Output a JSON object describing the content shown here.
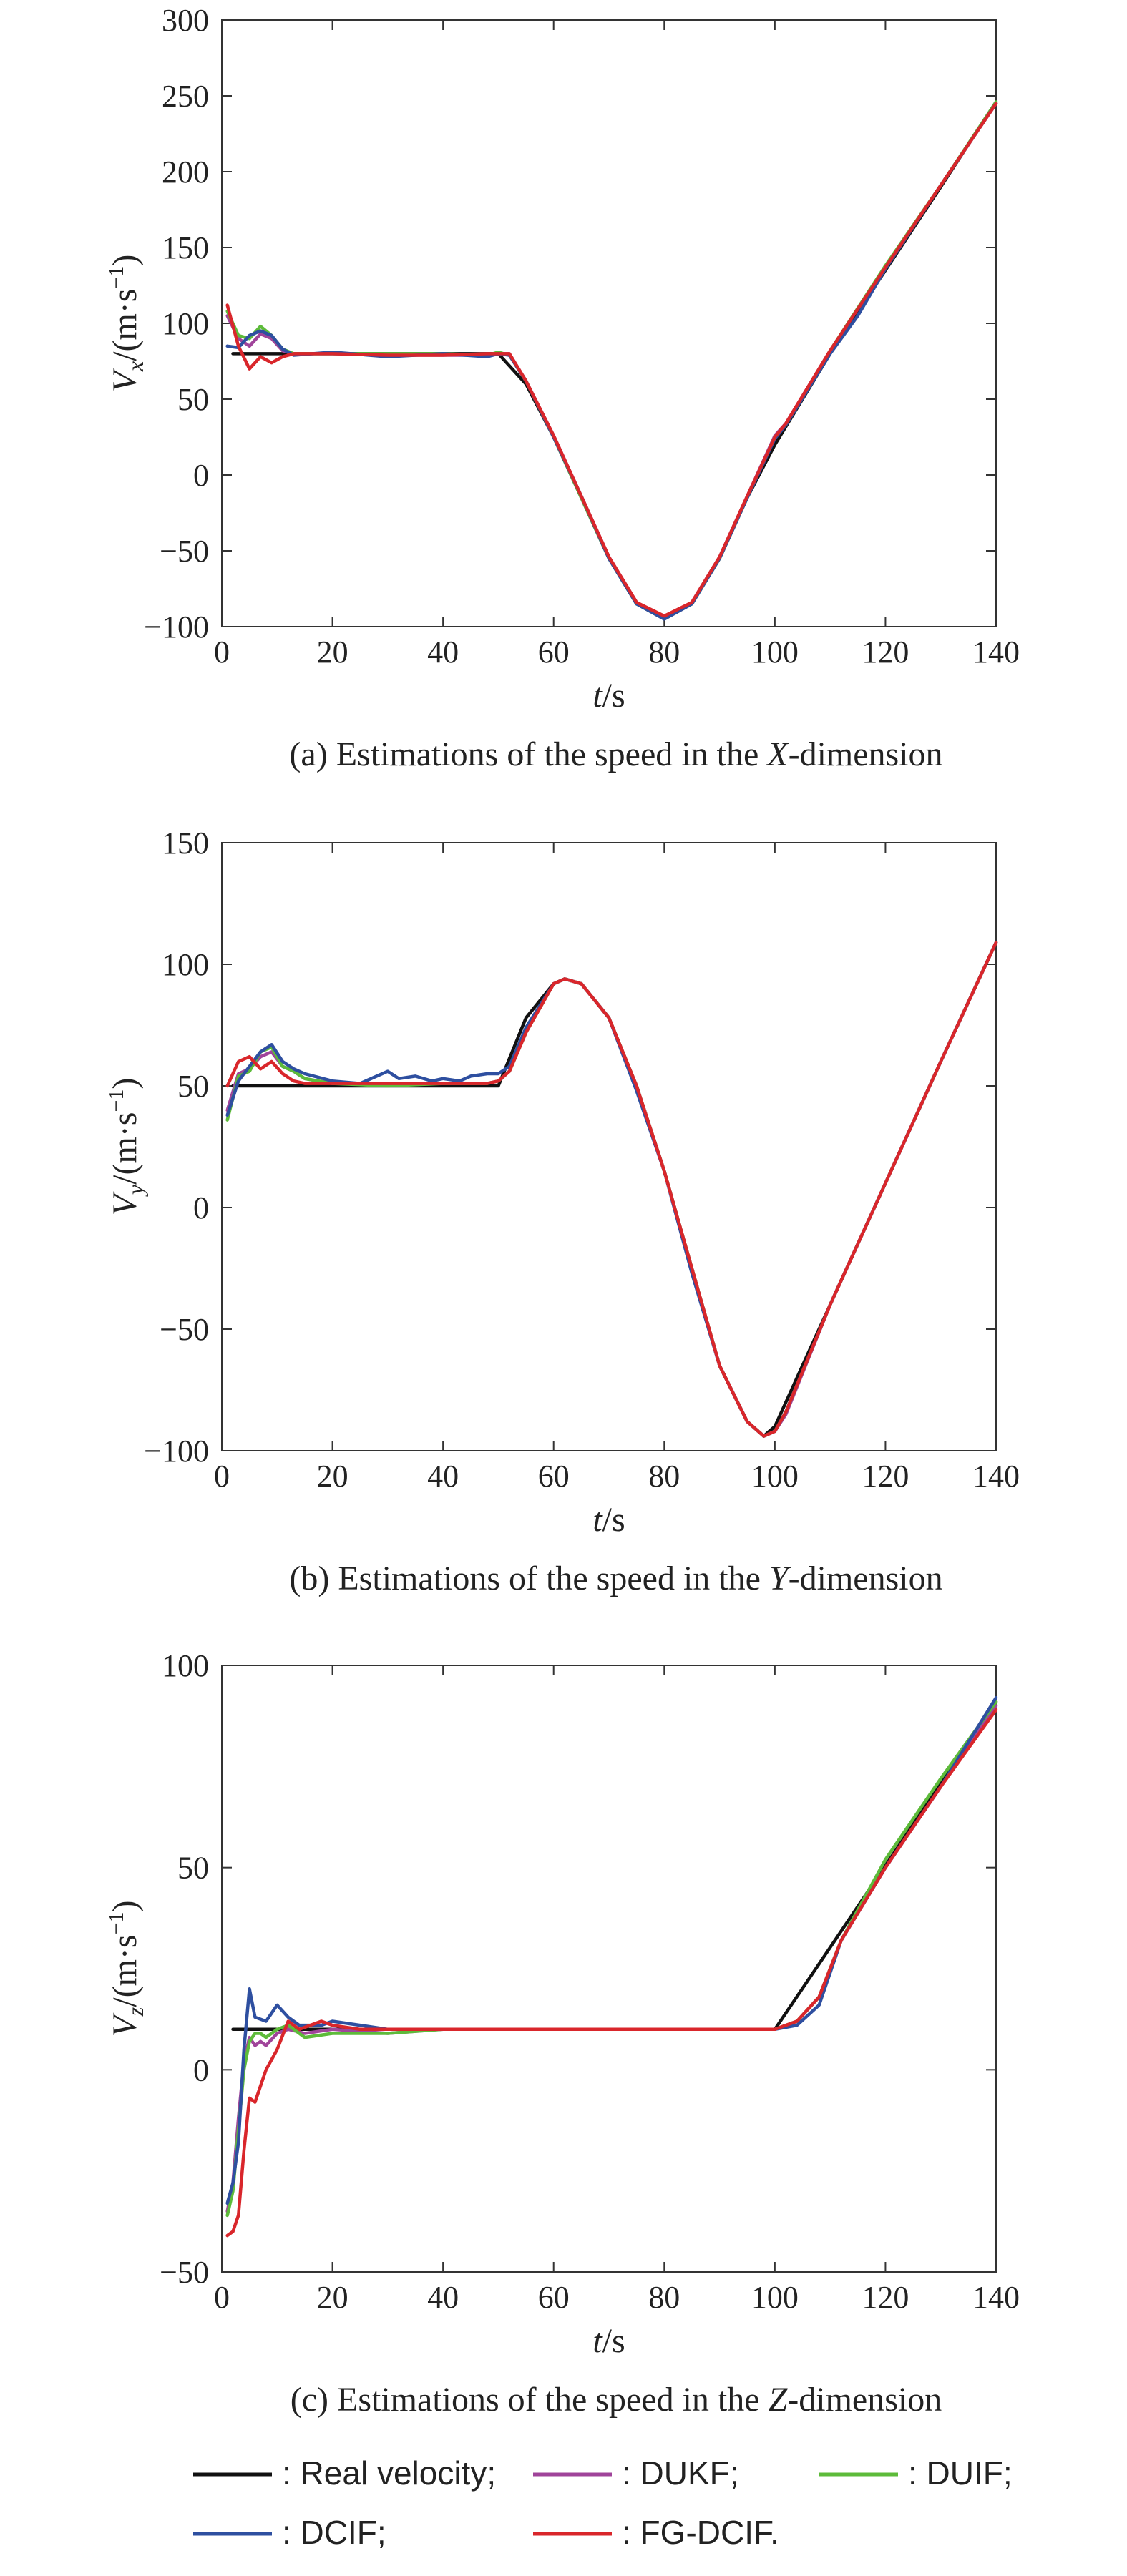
{
  "colors": {
    "real": "#111111",
    "dukf": "#a0449a",
    "duif": "#5dbb3a",
    "dcif": "#2e4fa0",
    "fgdcif": "#d9262b"
  },
  "chart_data": [
    {
      "type": "line",
      "caption_parts": [
        "(a) Estimations of the speed in the ",
        "X",
        "-dimension"
      ],
      "xlabel_parts": [
        "t",
        "/s"
      ],
      "ylabel_parts": [
        "V",
        "x",
        "/(m·s",
        "−1",
        ")"
      ],
      "xlim": [
        0,
        140
      ],
      "ylim": [
        -100,
        300
      ],
      "xticks": [
        0,
        20,
        40,
        60,
        80,
        100,
        120,
        140
      ],
      "yticks": [
        -100,
        -50,
        0,
        50,
        100,
        150,
        200,
        250,
        300
      ],
      "ytick_labels": [
        "−100",
        "−50",
        "0",
        "50",
        "100",
        "150",
        "200",
        "250",
        "300"
      ],
      "series": [
        {
          "key": "real",
          "x": [
            2,
            50,
            55,
            60,
            65,
            70,
            75,
            80,
            85,
            90,
            95,
            100,
            110,
            120,
            130,
            140
          ],
          "y": [
            80,
            80,
            60,
            25,
            -15,
            -55,
            -85,
            -95,
            -85,
            -55,
            -15,
            20,
            80,
            135,
            190,
            246
          ]
        },
        {
          "key": "dukf",
          "x": [
            1,
            3,
            5,
            7,
            9,
            11,
            13,
            20,
            30,
            40,
            48,
            50,
            52,
            55,
            60,
            65,
            70,
            75,
            80,
            85,
            90,
            95,
            100,
            102,
            110,
            120,
            130,
            140
          ],
          "y": [
            105,
            90,
            85,
            93,
            90,
            82,
            80,
            80,
            79,
            79,
            79,
            80,
            80,
            62,
            26,
            -14,
            -54,
            -84,
            -94,
            -84,
            -54,
            -14,
            26,
            34,
            82,
            137,
            191,
            245
          ]
        },
        {
          "key": "duif",
          "x": [
            1,
            3,
            5,
            7,
            9,
            11,
            13,
            20,
            30,
            40,
            48,
            50,
            52,
            55,
            60,
            65,
            70,
            75,
            80,
            85,
            90,
            95,
            100,
            102,
            110,
            120,
            130,
            140
          ],
          "y": [
            108,
            92,
            90,
            98,
            92,
            83,
            80,
            80,
            80,
            80,
            79,
            81,
            79,
            62,
            25,
            -15,
            -55,
            -85,
            -94,
            -85,
            -55,
            -15,
            25,
            33,
            82,
            138,
            191,
            246
          ]
        },
        {
          "key": "dcif",
          "x": [
            1,
            3,
            5,
            7,
            9,
            11,
            13,
            20,
            30,
            35,
            40,
            48,
            50,
            52,
            55,
            60,
            65,
            70,
            75,
            80,
            85,
            90,
            95,
            100,
            102,
            110,
            115,
            120,
            130,
            140
          ],
          "y": [
            85,
            84,
            92,
            95,
            92,
            83,
            79,
            81,
            78,
            79,
            80,
            78,
            80,
            79,
            62,
            25,
            -14,
            -55,
            -85,
            -95,
            -85,
            -55,
            -15,
            24,
            33,
            80,
            105,
            136,
            191,
            245
          ]
        },
        {
          "key": "fgdcif",
          "x": [
            1,
            3,
            5,
            7,
            9,
            11,
            13,
            20,
            30,
            40,
            48,
            50,
            52,
            55,
            60,
            65,
            70,
            75,
            80,
            85,
            90,
            95,
            100,
            102,
            110,
            120,
            130,
            140
          ],
          "y": [
            112,
            85,
            70,
            78,
            74,
            78,
            80,
            80,
            79,
            79,
            80,
            80,
            80,
            62,
            26,
            -14,
            -54,
            -84,
            -93,
            -84,
            -54,
            -14,
            25,
            34,
            82,
            137,
            191,
            245
          ]
        }
      ]
    },
    {
      "type": "line",
      "caption_parts": [
        "(b) Estimations of the speed in the ",
        "Y",
        "-dimension"
      ],
      "xlabel_parts": [
        "t",
        "/s"
      ],
      "ylabel_parts": [
        "V",
        "y",
        "/(m·s",
        "−1",
        ")"
      ],
      "xlim": [
        0,
        140
      ],
      "ylim": [
        -100,
        150
      ],
      "xticks": [
        0,
        20,
        40,
        60,
        80,
        100,
        120,
        140
      ],
      "yticks": [
        -100,
        -50,
        0,
        50,
        100,
        150
      ],
      "ytick_labels": [
        "−100",
        "−50",
        "0",
        "50",
        "100",
        "150"
      ],
      "series": [
        {
          "key": "real",
          "x": [
            2,
            50,
            55,
            60,
            62,
            65,
            70,
            75,
            80,
            85,
            90,
            95,
            98,
            100,
            110,
            120,
            130,
            140
          ],
          "y": [
            50,
            50,
            78,
            92,
            94,
            92,
            78,
            50,
            15,
            -25,
            -65,
            -88,
            -94,
            -90,
            -40,
            10,
            60,
            109
          ]
        },
        {
          "key": "dukf",
          "x": [
            1,
            3,
            5,
            7,
            9,
            11,
            13,
            15,
            20,
            30,
            40,
            48,
            50,
            52,
            55,
            60,
            62,
            65,
            70,
            75,
            80,
            85,
            90,
            95,
            98,
            100,
            102,
            110,
            120,
            130,
            140
          ],
          "y": [
            40,
            55,
            57,
            62,
            64,
            58,
            56,
            53,
            51,
            51,
            51,
            51,
            52,
            56,
            72,
            92,
            94,
            92,
            78,
            50,
            15,
            -25,
            -65,
            -88,
            -94,
            -92,
            -85,
            -40,
            10,
            60,
            109
          ]
        },
        {
          "key": "duif",
          "x": [
            1,
            3,
            5,
            7,
            9,
            11,
            13,
            15,
            20,
            30,
            40,
            48,
            50,
            52,
            55,
            60,
            62,
            65,
            70,
            75,
            80,
            85,
            90,
            95,
            98,
            100,
            102,
            110,
            120,
            130,
            140
          ],
          "y": [
            36,
            54,
            56,
            64,
            66,
            58,
            56,
            53,
            51,
            50,
            51,
            51,
            52,
            56,
            72,
            92,
            94,
            92,
            78,
            50,
            15,
            -25,
            -65,
            -88,
            -94,
            -92,
            -84,
            -40,
            10,
            60,
            109
          ]
        },
        {
          "key": "dcif",
          "x": [
            1,
            3,
            5,
            7,
            9,
            11,
            13,
            15,
            20,
            25,
            30,
            32,
            35,
            38,
            40,
            43,
            45,
            48,
            50,
            52,
            55,
            60,
            62,
            65,
            70,
            75,
            80,
            85,
            90,
            95,
            98,
            100,
            102,
            110,
            120,
            130,
            140
          ],
          "y": [
            38,
            52,
            58,
            64,
            67,
            60,
            57,
            55,
            52,
            51,
            56,
            53,
            54,
            52,
            53,
            52,
            54,
            55,
            55,
            58,
            74,
            92,
            94,
            92,
            78,
            48,
            15,
            -27,
            -65,
            -88,
            -94,
            -92,
            -84,
            -40,
            10,
            60,
            109
          ]
        },
        {
          "key": "fgdcif",
          "x": [
            1,
            3,
            5,
            7,
            9,
            11,
            13,
            15,
            20,
            30,
            40,
            48,
            50,
            52,
            55,
            60,
            62,
            65,
            70,
            75,
            80,
            85,
            90,
            95,
            98,
            100,
            102,
            110,
            120,
            130,
            140
          ],
          "y": [
            50,
            60,
            62,
            57,
            60,
            55,
            52,
            51,
            51,
            51,
            51,
            51,
            52,
            56,
            72,
            92,
            94,
            92,
            78,
            50,
            15,
            -25,
            -65,
            -88,
            -94,
            -92,
            -84,
            -40,
            10,
            60,
            109
          ]
        }
      ]
    },
    {
      "type": "line",
      "caption_parts": [
        "(c) Estimations of the speed in the ",
        "Z",
        "-dimension"
      ],
      "xlabel_parts": [
        "t",
        "/s"
      ],
      "ylabel_parts": [
        "V",
        "z",
        "/(m·s",
        "−1",
        ")"
      ],
      "xlim": [
        0,
        140
      ],
      "ylim": [
        -50,
        100
      ],
      "xticks": [
        0,
        20,
        40,
        60,
        80,
        100,
        120,
        140
      ],
      "yticks": [
        -50,
        0,
        50,
        100
      ],
      "ytick_labels": [
        "−50",
        "0",
        "50",
        "100"
      ],
      "series": [
        {
          "key": "real",
          "x": [
            2,
            100,
            140
          ],
          "y": [
            10,
            10,
            91
          ]
        },
        {
          "key": "dukf",
          "x": [
            1,
            2,
            3,
            4,
            5,
            6,
            7,
            8,
            10,
            12,
            15,
            20,
            30,
            40,
            60,
            80,
            100,
            104,
            108,
            112,
            120,
            130,
            140
          ],
          "y": [
            -35,
            -28,
            -12,
            2,
            8,
            6,
            7,
            6,
            9,
            10,
            9,
            10,
            9,
            10,
            10,
            10,
            10,
            12,
            18,
            32,
            50,
            70,
            90
          ]
        },
        {
          "key": "duif",
          "x": [
            1,
            2,
            3,
            4,
            5,
            6,
            7,
            8,
            10,
            12,
            15,
            20,
            30,
            40,
            60,
            80,
            100,
            104,
            108,
            112,
            120,
            130,
            140
          ],
          "y": [
            -36,
            -30,
            -15,
            0,
            7,
            9,
            9,
            8,
            10,
            11,
            8,
            9,
            9,
            10,
            10,
            10,
            10,
            12,
            18,
            32,
            52,
            72,
            91
          ]
        },
        {
          "key": "dcif",
          "x": [
            1,
            2,
            3,
            4,
            5,
            6,
            8,
            10,
            12,
            14,
            16,
            18,
            20,
            25,
            30,
            40,
            60,
            80,
            100,
            104,
            108,
            112,
            120,
            130,
            140
          ],
          "y": [
            -33,
            -28,
            -18,
            5,
            20,
            13,
            12,
            16,
            13,
            11,
            11,
            11,
            12,
            11,
            10,
            10,
            10,
            10,
            10,
            11,
            16,
            32,
            50,
            70,
            92
          ]
        },
        {
          "key": "fgdcif",
          "x": [
            1,
            2,
            3,
            4,
            5,
            6,
            7,
            8,
            10,
            12,
            14,
            16,
            18,
            20,
            25,
            30,
            40,
            60,
            80,
            100,
            104,
            108,
            112,
            120,
            130,
            140
          ],
          "y": [
            -41,
            -40,
            -36,
            -20,
            -7,
            -8,
            -4,
            0,
            5,
            12,
            10,
            11,
            12,
            11,
            10,
            10,
            10,
            10,
            10,
            10,
            12,
            18,
            32,
            50,
            70,
            89
          ]
        }
      ]
    }
  ],
  "legend": [
    {
      "key": "real",
      "label": ": Real velocity;"
    },
    {
      "key": "dukf",
      "label": ": DUKF;"
    },
    {
      "key": "duif",
      "label": ": DUIF;"
    },
    {
      "key": "dcif",
      "label": ": DCIF;"
    },
    {
      "key": "fgdcif",
      "label": ": FG-DCIF."
    }
  ]
}
